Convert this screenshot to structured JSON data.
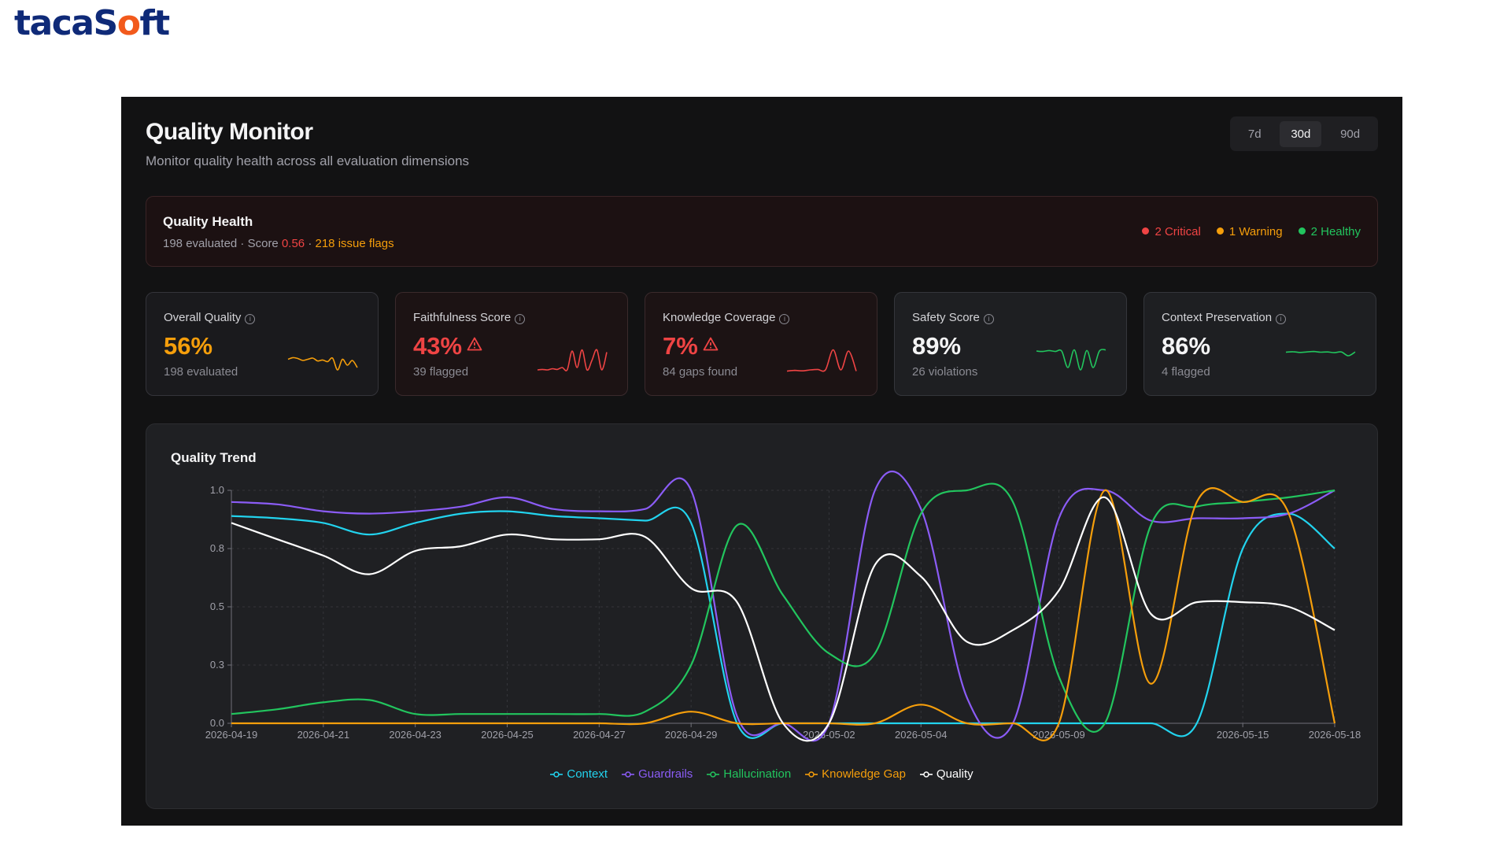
{
  "brand": {
    "logo_pre": "taca",
    "logo_mid": "S",
    "logo_o": "o",
    "logo_post": "ft"
  },
  "header": {
    "title": "Quality Monitor",
    "subtitle": "Monitor quality health across all evaluation dimensions"
  },
  "range_tabs": [
    {
      "label": "7d",
      "active": false
    },
    {
      "label": "30d",
      "active": true
    },
    {
      "label": "90d",
      "active": false
    }
  ],
  "health": {
    "title": "Quality Health",
    "evaluated": "198 evaluated",
    "score_label": "Score",
    "score_value": "0.56",
    "issue_flags": "218 issue flags",
    "separator": "·",
    "statuses": [
      {
        "label": "2 Critical",
        "color": "#ef4444"
      },
      {
        "label": "1 Warning",
        "color": "#f59e0b"
      },
      {
        "label": "2 Healthy",
        "color": "#22c55e"
      }
    ]
  },
  "cards": [
    {
      "label": "Overall Quality",
      "value": "56%",
      "sub": "198 evaluated",
      "color": "#f59e0b",
      "warning": false,
      "spark": [
        0.55,
        0.62,
        0.58,
        0.5,
        0.55,
        0.6,
        0.48,
        0.52,
        0.45,
        0.6,
        0.1,
        0.55,
        0.3,
        0.5,
        0.2
      ]
    },
    {
      "label": "Faithfulness Score",
      "value": "43%",
      "sub": "39 flagged",
      "color": "#ef4444",
      "warning": true,
      "spark": [
        0.1,
        0.12,
        0.1,
        0.15,
        0.12,
        0.2,
        0.1,
        0.9,
        0.2,
        0.95,
        0.1,
        0.5,
        0.95,
        0.1,
        0.85
      ]
    },
    {
      "label": "Knowledge Coverage",
      "value": "7%",
      "sub": "84 gaps found",
      "color": "#ef4444",
      "warning": true,
      "spark": [
        0.05,
        0.08,
        0.06,
        0.1,
        0.12,
        0.1,
        0.95,
        0.1,
        0.9,
        0.05
      ]
    },
    {
      "label": "Safety Score",
      "value": "89%",
      "sub": "26 violations",
      "color": "#22c55e",
      "warning": false,
      "spark": [
        0.9,
        0.88,
        0.92,
        0.88,
        0.9,
        0.2,
        0.95,
        0.1,
        0.92,
        0.2,
        0.9,
        0.95
      ]
    },
    {
      "label": "Context Preservation",
      "value": "86%",
      "sub": "4 flagged",
      "color": "#22c55e",
      "warning": false,
      "spark": [
        0.85,
        0.87,
        0.84,
        0.86,
        0.88,
        0.85,
        0.86,
        0.83,
        0.86,
        0.7,
        0.86
      ]
    }
  ],
  "chart_data": {
    "type": "line",
    "title": "Quality Trend",
    "x": [
      "2026-04-19",
      "2026-04-20",
      "2026-04-21",
      "2026-04-22",
      "2026-04-23",
      "2026-04-24",
      "2026-04-25",
      "2026-04-26",
      "2026-04-27",
      "2026-04-28",
      "2026-04-29",
      "2026-04-30",
      "2026-05-01",
      "2026-05-02",
      "2026-05-03",
      "2026-05-04",
      "2026-05-05",
      "2026-05-06",
      "2026-05-09",
      "2026-05-10",
      "2026-05-11",
      "2026-05-12",
      "2026-05-15",
      "2026-05-16",
      "2026-05-18"
    ],
    "x_tick_labels": [
      "2026-04-19",
      "2026-04-21",
      "2026-04-23",
      "2026-04-25",
      "2026-04-27",
      "2026-04-29",
      "2026-05-02",
      "2026-05-04",
      "2026-05-09",
      "2026-05-15",
      "2026-05-18"
    ],
    "x_tick_indices": [
      0,
      2,
      4,
      6,
      8,
      10,
      13,
      15,
      18,
      22,
      24
    ],
    "y_ticks": [
      "0.0",
      "0.3",
      "0.5",
      "0.8",
      "1.0"
    ],
    "y_tick_values": [
      0,
      0.25,
      0.5,
      0.75,
      1.0
    ],
    "ylim": [
      0,
      1
    ],
    "grid": true,
    "legend_position": "bottom",
    "series": [
      {
        "name": "Context",
        "color": "#22d3ee",
        "values": [
          0.89,
          0.88,
          0.86,
          0.81,
          0.86,
          0.9,
          0.91,
          0.89,
          0.88,
          0.87,
          0.86,
          0.0,
          0.0,
          0.0,
          0.0,
          0.0,
          0.0,
          0.0,
          0.0,
          0.0,
          0.0,
          0.0,
          0.75,
          0.9,
          0.75
        ]
      },
      {
        "name": "Guardrails",
        "color": "#8b5cf6",
        "values": [
          0.95,
          0.94,
          0.91,
          0.9,
          0.91,
          0.93,
          0.97,
          0.92,
          0.91,
          0.92,
          1.0,
          0.03,
          0.0,
          0.0,
          1.0,
          0.92,
          0.11,
          0.0,
          0.88,
          1.0,
          0.87,
          0.88,
          0.88,
          0.9,
          1.0
        ]
      },
      {
        "name": "Hallucination",
        "color": "#22c55e",
        "values": [
          0.04,
          0.06,
          0.09,
          0.1,
          0.04,
          0.04,
          0.04,
          0.04,
          0.04,
          0.05,
          0.25,
          0.85,
          0.55,
          0.3,
          0.3,
          0.9,
          1.0,
          0.95,
          0.2,
          0.0,
          0.85,
          0.93,
          0.95,
          0.97,
          1.0
        ]
      },
      {
        "name": "Knowledge Gap",
        "color": "#f59e0b",
        "values": [
          0.0,
          0.0,
          0.0,
          0.0,
          0.0,
          0.0,
          0.0,
          0.0,
          0.0,
          0.0,
          0.05,
          0.0,
          0.0,
          0.0,
          0.0,
          0.08,
          0.0,
          0.0,
          0.0,
          1.0,
          0.17,
          0.95,
          0.95,
          0.9,
          0.0
        ]
      },
      {
        "name": "Quality",
        "color": "#ffffff",
        "values": [
          0.86,
          0.79,
          0.72,
          0.64,
          0.74,
          0.76,
          0.81,
          0.79,
          0.79,
          0.8,
          0.58,
          0.52,
          0.0,
          0.0,
          0.68,
          0.63,
          0.35,
          0.4,
          0.57,
          0.97,
          0.47,
          0.52,
          0.52,
          0.5,
          0.4
        ]
      }
    ]
  }
}
